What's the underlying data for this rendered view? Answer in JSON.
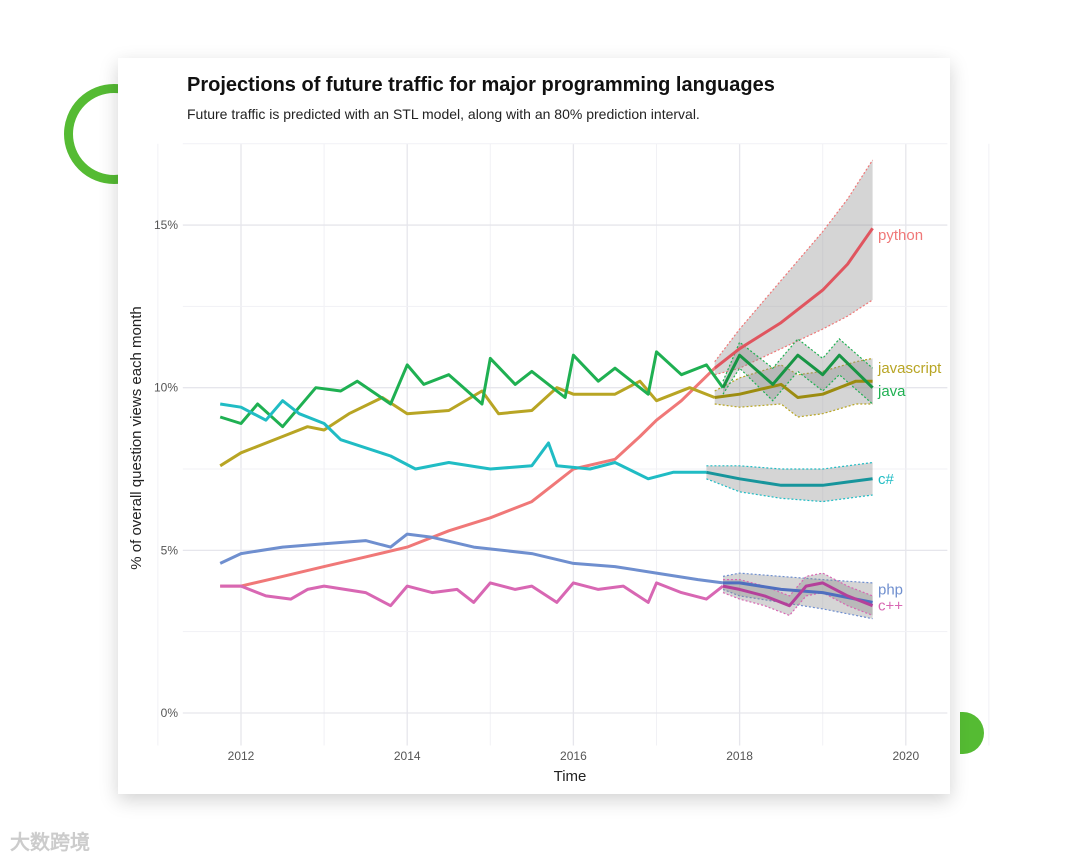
{
  "watermark": "大数跨境",
  "chart_data": {
    "type": "line",
    "title": "Projections of future traffic for major programming languages",
    "subtitle": "Future traffic is predicted with an STL model, along with an 80% prediction interval.",
    "xlabel": "Time",
    "ylabel": "% of overall question views each month",
    "xlim": [
      2011.3,
      2020.5
    ],
    "ylim": [
      -1.0,
      17.5
    ],
    "xticks": [
      2012,
      2014,
      2016,
      2018,
      2020
    ],
    "xtick_labels": [
      "2012",
      "2014",
      "2016",
      "2018",
      "2020"
    ],
    "yticks": [
      0,
      5,
      10,
      15
    ],
    "ytick_labels": [
      "0%",
      "5%",
      "10%",
      "15%"
    ],
    "grid": true,
    "legend": "direct labels at right end of lines",
    "series": [
      {
        "name": "python",
        "color": "#f07878",
        "fcolor": "#e0555f",
        "x": [
          2011.75,
          2012,
          2012.5,
          2013,
          2013.5,
          2014,
          2014.5,
          2015,
          2015.5,
          2015.75,
          2016,
          2016.5,
          2016.8,
          2017,
          2017.3,
          2017.7
        ],
        "y": [
          3.9,
          3.9,
          4.2,
          4.5,
          4.8,
          5.1,
          5.6,
          6.0,
          6.5,
          7.0,
          7.5,
          7.8,
          8.5,
          9.0,
          9.6,
          10.6
        ],
        "fx": [
          2017.7,
          2018,
          2018.5,
          2019,
          2019.3,
          2019.6
        ],
        "fy": [
          10.6,
          11.2,
          12.0,
          13.0,
          13.8,
          14.9
        ],
        "flo": [
          10.4,
          10.6,
          11.2,
          11.8,
          12.2,
          12.7
        ],
        "fhi": [
          10.8,
          11.8,
          13.3,
          14.8,
          15.8,
          17.0
        ]
      },
      {
        "name": "javascript",
        "color": "#b8a524",
        "fcolor": "#9c8c10",
        "x": [
          2011.75,
          2012,
          2012.5,
          2012.8,
          2013,
          2013.3,
          2013.7,
          2014,
          2014.5,
          2014.9,
          2015.1,
          2015.5,
          2015.8,
          2016,
          2016.5,
          2016.8,
          2017,
          2017.4,
          2017.7
        ],
        "y": [
          7.6,
          8.0,
          8.5,
          8.8,
          8.7,
          9.2,
          9.7,
          9.2,
          9.3,
          9.9,
          9.2,
          9.3,
          10.0,
          9.8,
          9.8,
          10.2,
          9.6,
          10.0,
          9.7
        ],
        "fx": [
          2017.7,
          2018,
          2018.5,
          2018.7,
          2019,
          2019.4,
          2019.6
        ],
        "fy": [
          9.7,
          9.8,
          10.1,
          9.7,
          9.8,
          10.2,
          10.2
        ],
        "flo": [
          9.5,
          9.4,
          9.5,
          9.1,
          9.2,
          9.5,
          9.5
        ],
        "fhi": [
          9.9,
          10.3,
          10.7,
          10.4,
          10.5,
          10.8,
          10.9
        ]
      },
      {
        "name": "java",
        "color": "#1fb052",
        "fcolor": "#179544",
        "x": [
          2011.75,
          2012,
          2012.2,
          2012.5,
          2012.9,
          2013.2,
          2013.4,
          2013.8,
          2014,
          2014.2,
          2014.5,
          2014.9,
          2015,
          2015.3,
          2015.5,
          2015.9,
          2016,
          2016.3,
          2016.5,
          2016.9,
          2017,
          2017.3,
          2017.6,
          2017.8
        ],
        "y": [
          9.1,
          8.9,
          9.5,
          8.8,
          10.0,
          9.9,
          10.2,
          9.5,
          10.7,
          10.1,
          10.4,
          9.5,
          10.9,
          10.1,
          10.5,
          9.7,
          11.0,
          10.2,
          10.6,
          9.8,
          11.1,
          10.4,
          10.7,
          10.0
        ],
        "fx": [
          2017.8,
          2018,
          2018.4,
          2018.7,
          2019,
          2019.2,
          2019.6
        ],
        "fy": [
          10.0,
          11.0,
          10.1,
          11.0,
          10.4,
          11.0,
          10.0
        ],
        "flo": [
          9.8,
          10.6,
          9.6,
          10.5,
          9.9,
          10.4,
          9.5
        ],
        "fhi": [
          10.2,
          11.4,
          10.6,
          11.5,
          10.9,
          11.5,
          10.6
        ]
      },
      {
        "name": "c#",
        "color": "#20bcc4",
        "fcolor": "#17959c",
        "x": [
          2011.75,
          2012,
          2012.3,
          2012.5,
          2012.7,
          2013,
          2013.2,
          2013.8,
          2014.1,
          2014.5,
          2015,
          2015.5,
          2015.7,
          2015.8,
          2016.2,
          2016.5,
          2016.9,
          2017.2,
          2017.6
        ],
        "y": [
          9.5,
          9.4,
          9.0,
          9.6,
          9.2,
          8.9,
          8.4,
          7.9,
          7.5,
          7.7,
          7.5,
          7.6,
          8.3,
          7.6,
          7.5,
          7.7,
          7.2,
          7.4,
          7.4
        ],
        "fx": [
          2017.6,
          2018,
          2018.5,
          2019,
          2019.3,
          2019.6
        ],
        "fy": [
          7.4,
          7.2,
          7.0,
          7.0,
          7.1,
          7.2
        ],
        "flo": [
          7.2,
          6.8,
          6.6,
          6.5,
          6.6,
          6.7
        ],
        "fhi": [
          7.6,
          7.6,
          7.5,
          7.5,
          7.6,
          7.7
        ]
      },
      {
        "name": "php",
        "color": "#6f8fcf",
        "fcolor": "#4f6fbf",
        "x": [
          2011.75,
          2012,
          2012.5,
          2013,
          2013.5,
          2013.8,
          2014,
          2014.3,
          2014.8,
          2015.5,
          2016,
          2016.5,
          2017,
          2017.5,
          2017.8
        ],
        "y": [
          4.6,
          4.9,
          5.1,
          5.2,
          5.3,
          5.1,
          5.5,
          5.4,
          5.1,
          4.9,
          4.6,
          4.5,
          4.3,
          4.1,
          4.0
        ],
        "fx": [
          2017.8,
          2018,
          2018.5,
          2019,
          2019.6
        ],
        "fy": [
          4.0,
          4.0,
          3.8,
          3.7,
          3.4
        ],
        "flo": [
          3.8,
          3.6,
          3.4,
          3.2,
          2.9
        ],
        "fhi": [
          4.2,
          4.3,
          4.2,
          4.1,
          4.0
        ]
      },
      {
        "name": "c++",
        "color": "#d867b3",
        "fcolor": "#b4409a",
        "x": [
          2011.75,
          2012,
          2012.3,
          2012.6,
          2012.8,
          2013,
          2013.5,
          2013.8,
          2014,
          2014.3,
          2014.6,
          2014.8,
          2015,
          2015.3,
          2015.5,
          2015.8,
          2016,
          2016.3,
          2016.6,
          2016.9,
          2017,
          2017.3,
          2017.6,
          2017.8
        ],
        "y": [
          3.9,
          3.9,
          3.6,
          3.5,
          3.8,
          3.9,
          3.7,
          3.3,
          3.9,
          3.7,
          3.8,
          3.4,
          4.0,
          3.8,
          3.9,
          3.4,
          4.0,
          3.8,
          3.9,
          3.4,
          4.0,
          3.7,
          3.5,
          3.9
        ],
        "fx": [
          2017.8,
          2018,
          2018.3,
          2018.6,
          2018.8,
          2019,
          2019.3,
          2019.6
        ],
        "fy": [
          3.9,
          3.8,
          3.6,
          3.3,
          3.9,
          4.0,
          3.6,
          3.3
        ],
        "flo": [
          3.7,
          3.5,
          3.3,
          3.0,
          3.6,
          3.7,
          3.3,
          3.0
        ],
        "fhi": [
          4.1,
          4.1,
          3.9,
          3.6,
          4.2,
          4.3,
          3.9,
          3.6
        ]
      }
    ],
    "label_values": {
      "python": 14.7,
      "javascript": 10.6,
      "java": 9.9,
      "c#": 7.2,
      "php": 3.8,
      "c++": 3.3
    }
  }
}
